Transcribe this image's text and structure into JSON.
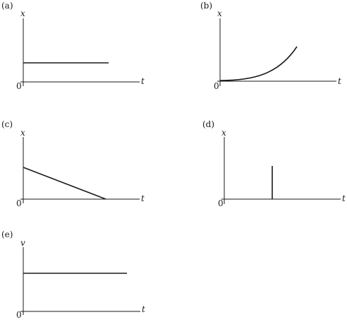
{
  "panels": [
    {
      "label": "(a)",
      "y_axis_label": "x",
      "x_axis_label": "t",
      "origin_label": "0"
    },
    {
      "label": "(b)",
      "y_axis_label": "x",
      "x_axis_label": "t",
      "origin_label": "0"
    },
    {
      "label": "(c)",
      "y_axis_label": "x",
      "x_axis_label": "t",
      "origin_label": "0"
    },
    {
      "label": "(d)",
      "y_axis_label": "x",
      "x_axis_label": "t",
      "origin_label": "0"
    },
    {
      "label": "(e)",
      "y_axis_label": "v",
      "x_axis_label": "t",
      "origin_label": "0"
    }
  ]
}
